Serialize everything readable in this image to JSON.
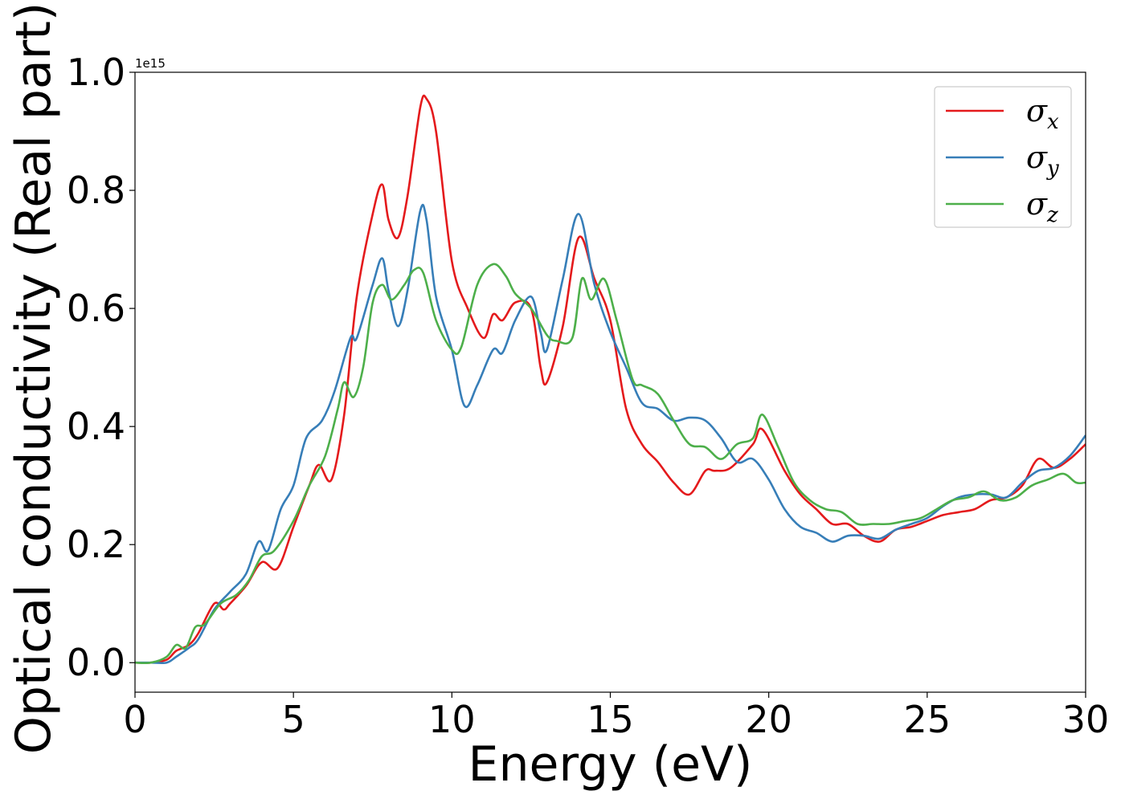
{
  "chart_data": {
    "type": "line",
    "xlabel": "Energy (eV)",
    "ylabel": "Optical conductivity (Real part)",
    "y_offset_text": "1e15",
    "xlim": [
      0,
      30
    ],
    "ylim": [
      -0.05,
      1.0
    ],
    "x_ticks": [
      0,
      5,
      10,
      15,
      20,
      25,
      30
    ],
    "x_tick_labels": [
      "0",
      "5",
      "10",
      "15",
      "20",
      "25",
      "30"
    ],
    "y_ticks": [
      0.0,
      0.2,
      0.4,
      0.6,
      0.8,
      1.0
    ],
    "y_tick_labels": [
      "0.0",
      "0.2",
      "0.4",
      "0.6",
      "0.8",
      "1.0"
    ],
    "grid": false,
    "legend_position": "top-right",
    "series": [
      {
        "name": "σ_x",
        "legend_base": "σ",
        "legend_sub": "x",
        "color": "#e41a1c",
        "x": [
          0,
          0.5,
          1,
          1.3,
          1.7,
          2.0,
          2.5,
          2.8,
          3.0,
          3.5,
          4.0,
          4.5,
          5.0,
          5.5,
          5.8,
          6.2,
          6.6,
          7.0,
          7.5,
          7.8,
          8.0,
          8.3,
          8.6,
          9.0,
          9.2,
          9.5,
          10.0,
          10.5,
          11.0,
          11.3,
          11.6,
          12.0,
          12.5,
          12.8,
          13.0,
          13.5,
          14.0,
          14.5,
          15.0,
          15.5,
          16.0,
          16.5,
          17.0,
          17.5,
          18.0,
          18.3,
          18.8,
          19.5,
          19.8,
          20.5,
          21.0,
          21.5,
          22.0,
          22.5,
          23.0,
          23.5,
          24.0,
          24.5,
          25.0,
          25.5,
          26.0,
          26.5,
          27.0,
          27.5,
          28.0,
          28.5,
          29.0,
          29.5,
          30.0
        ],
        "y": [
          0.0,
          0.0,
          0.005,
          0.02,
          0.03,
          0.05,
          0.1,
          0.09,
          0.1,
          0.13,
          0.17,
          0.16,
          0.23,
          0.3,
          0.335,
          0.31,
          0.42,
          0.62,
          0.76,
          0.81,
          0.75,
          0.72,
          0.79,
          0.94,
          0.955,
          0.9,
          0.68,
          0.6,
          0.55,
          0.59,
          0.58,
          0.61,
          0.6,
          0.5,
          0.475,
          0.57,
          0.72,
          0.65,
          0.58,
          0.43,
          0.37,
          0.34,
          0.305,
          0.285,
          0.325,
          0.325,
          0.33,
          0.37,
          0.395,
          0.325,
          0.285,
          0.26,
          0.235,
          0.235,
          0.215,
          0.205,
          0.225,
          0.23,
          0.24,
          0.25,
          0.255,
          0.26,
          0.275,
          0.28,
          0.3,
          0.345,
          0.33,
          0.345,
          0.37
        ]
      },
      {
        "name": "σ_y",
        "legend_base": "σ",
        "legend_sub": "y",
        "color": "#377eb8",
        "x": [
          0,
          0.5,
          1,
          1.3,
          1.7,
          2.0,
          2.5,
          3.0,
          3.5,
          3.9,
          4.2,
          4.6,
          5.0,
          5.4,
          5.9,
          6.3,
          6.8,
          7.0,
          7.5,
          7.8,
          8.0,
          8.3,
          8.6,
          9.0,
          9.2,
          9.5,
          10.0,
          10.4,
          10.8,
          11.3,
          11.6,
          12.0,
          12.5,
          12.8,
          13.0,
          13.5,
          14.0,
          14.5,
          15.0,
          15.5,
          16.0,
          16.5,
          17.0,
          17.5,
          18.0,
          18.5,
          19.0,
          19.5,
          20.0,
          20.5,
          21.0,
          21.5,
          22.0,
          22.5,
          23.0,
          23.5,
          24.0,
          24.5,
          25.0,
          25.5,
          26.0,
          26.5,
          27.0,
          27.5,
          28.0,
          28.5,
          29.0,
          29.5,
          30.0
        ],
        "y": [
          0.0,
          0.0,
          0.0,
          0.01,
          0.025,
          0.04,
          0.09,
          0.12,
          0.15,
          0.205,
          0.19,
          0.26,
          0.3,
          0.38,
          0.41,
          0.46,
          0.55,
          0.55,
          0.64,
          0.685,
          0.63,
          0.57,
          0.63,
          0.765,
          0.75,
          0.62,
          0.53,
          0.435,
          0.47,
          0.53,
          0.525,
          0.58,
          0.62,
          0.56,
          0.53,
          0.65,
          0.76,
          0.64,
          0.56,
          0.5,
          0.44,
          0.43,
          0.41,
          0.415,
          0.41,
          0.38,
          0.34,
          0.345,
          0.31,
          0.26,
          0.23,
          0.22,
          0.205,
          0.215,
          0.215,
          0.21,
          0.225,
          0.235,
          0.245,
          0.265,
          0.28,
          0.285,
          0.285,
          0.28,
          0.305,
          0.325,
          0.33,
          0.35,
          0.385
        ]
      },
      {
        "name": "σ_z",
        "legend_base": "σ",
        "legend_sub": "z",
        "color": "#4daf4a",
        "x": [
          0,
          0.5,
          1,
          1.3,
          1.6,
          1.9,
          2.2,
          2.7,
          3.2,
          3.6,
          4.0,
          4.4,
          5.0,
          5.5,
          6.0,
          6.4,
          6.6,
          6.9,
          7.2,
          7.5,
          7.8,
          8.1,
          8.5,
          8.8,
          9.1,
          9.5,
          10.0,
          10.3,
          10.8,
          11.3,
          11.7,
          12.0,
          12.5,
          13.0,
          13.3,
          13.8,
          14.1,
          14.4,
          14.8,
          15.2,
          15.7,
          16.0,
          16.5,
          17.0,
          17.5,
          18.0,
          18.5,
          19.0,
          19.5,
          19.8,
          20.3,
          20.8,
          21.3,
          21.8,
          22.3,
          22.8,
          23.3,
          23.8,
          24.3,
          24.8,
          25.3,
          25.8,
          26.3,
          26.8,
          27.3,
          27.8,
          28.3,
          28.8,
          29.3,
          29.7,
          30.0
        ],
        "y": [
          0.0,
          0.0,
          0.01,
          0.03,
          0.025,
          0.06,
          0.065,
          0.1,
          0.115,
          0.14,
          0.18,
          0.19,
          0.24,
          0.3,
          0.35,
          0.43,
          0.475,
          0.45,
          0.5,
          0.61,
          0.64,
          0.615,
          0.64,
          0.665,
          0.66,
          0.58,
          0.53,
          0.535,
          0.64,
          0.675,
          0.655,
          0.625,
          0.6,
          0.555,
          0.545,
          0.55,
          0.65,
          0.615,
          0.65,
          0.58,
          0.48,
          0.47,
          0.455,
          0.41,
          0.37,
          0.365,
          0.345,
          0.37,
          0.38,
          0.42,
          0.365,
          0.305,
          0.275,
          0.26,
          0.255,
          0.235,
          0.235,
          0.235,
          0.24,
          0.245,
          0.26,
          0.275,
          0.28,
          0.29,
          0.275,
          0.28,
          0.3,
          0.31,
          0.32,
          0.305,
          0.305
        ]
      }
    ]
  }
}
